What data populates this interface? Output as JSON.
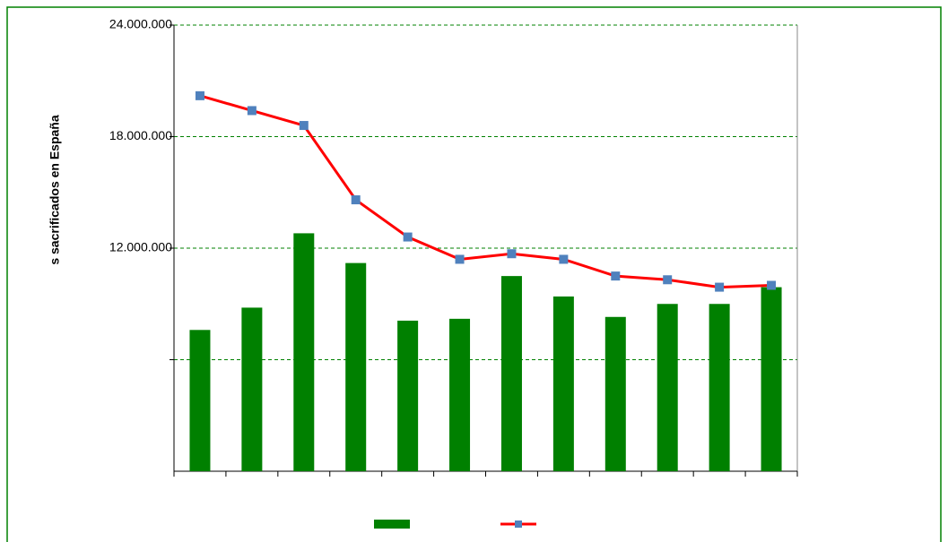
{
  "chart_data": {
    "type": "bar_line",
    "y_label": "s sacrificados en España",
    "categories": [
      null,
      null,
      null,
      null,
      null,
      null,
      null,
      null,
      null,
      null,
      null,
      null
    ],
    "series": [
      {
        "type": "bar",
        "color": "#008000",
        "values": [
          7600000,
          8800000,
          12800000,
          11200000,
          8100000,
          8200000,
          10500000,
          9400000,
          8300000,
          9000000,
          9000000,
          9900000
        ]
      },
      {
        "type": "line",
        "color": "#ff0000",
        "marker_color": "#4f81bd",
        "values": [
          20200000,
          19400000,
          18600000,
          14600000,
          12600000,
          11400000,
          11700000,
          11400000,
          10500000,
          10300000,
          9900000,
          10000000
        ]
      }
    ],
    "ylim": [
      0,
      24000000
    ],
    "yticks": [
      {
        "value": 12000000,
        "label": "12.000.000"
      },
      {
        "value": 18000000,
        "label": "18.000.000"
      },
      {
        "value": 24000000,
        "label": "24.000.000"
      }
    ],
    "grid_values": [
      6000000,
      12000000,
      18000000,
      24000000
    ],
    "grid": true,
    "grid_color": "#008000",
    "frame_color": "#008000"
  }
}
